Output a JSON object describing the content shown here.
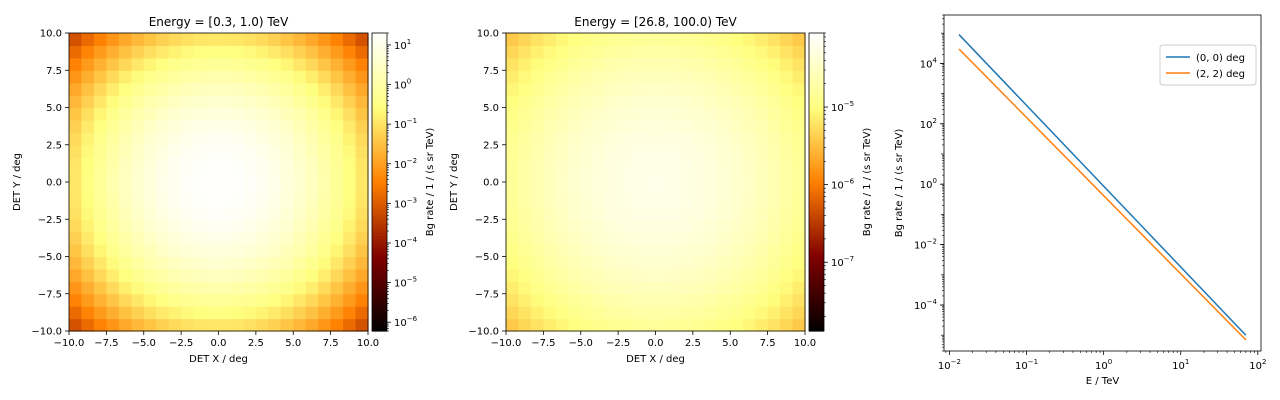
{
  "chart_data": [
    {
      "type": "heatmap",
      "title": "Energy = [0.3, 1.0) TeV",
      "xlabel": "DET X / deg",
      "ylabel": "DET Y / deg",
      "xlim": [
        -10,
        10
      ],
      "ylim": [
        -10,
        10
      ],
      "grid": false,
      "x_ticks": [
        -10.0,
        -7.5,
        -5.0,
        -2.5,
        0.0,
        2.5,
        5.0,
        7.5,
        10.0
      ],
      "x_tick_labels": [
        "−10.0",
        "−7.5",
        "−5.0",
        "−2.5",
        "0.0",
        "2.5",
        "5.0",
        "7.5",
        "10.0"
      ],
      "y_ticks": [
        -10.0,
        -7.5,
        -5.0,
        -2.5,
        0.0,
        2.5,
        5.0,
        7.5,
        10.0
      ],
      "y_tick_labels": [
        "−10.0",
        "−7.5",
        "−5.0",
        "−2.5",
        "0.0",
        "2.5",
        "5.0",
        "7.5",
        "10.0"
      ],
      "bins": 24,
      "model": "gaussian",
      "peak_value": 20,
      "sigma_deg": 3.0,
      "colormap": "afmhot",
      "colorbar": {
        "label": "Bg rate / 1 / (s sr TeV)",
        "scale": "log",
        "range": [
          6e-07,
          20
        ],
        "major_ticks": [
          1e-06,
          1e-05,
          0.0001,
          0.001,
          0.01,
          0.1,
          1,
          10
        ],
        "tick_labels": [
          {
            "base": "10",
            "exp": "−6"
          },
          {
            "base": "10",
            "exp": "−5"
          },
          {
            "base": "10",
            "exp": "−4"
          },
          {
            "base": "10",
            "exp": "−3"
          },
          {
            "base": "10",
            "exp": "−2"
          },
          {
            "base": "10",
            "exp": "−1"
          },
          {
            "base": "10",
            "exp": "0"
          },
          {
            "base": "10",
            "exp": "1"
          }
        ]
      }
    },
    {
      "type": "heatmap",
      "title": "Energy = [26.8, 100.0) TeV",
      "xlabel": "DET X / deg",
      "ylabel": "DET Y / deg",
      "xlim": [
        -10,
        10
      ],
      "ylim": [
        -10,
        10
      ],
      "grid": false,
      "x_ticks": [
        -10.0,
        -7.5,
        -5.0,
        -2.5,
        0.0,
        2.5,
        5.0,
        7.5,
        10.0
      ],
      "x_tick_labels": [
        "−10.0",
        "−7.5",
        "−5.0",
        "−2.5",
        "0.0",
        "2.5",
        "5.0",
        "7.5",
        "10.0"
      ],
      "y_ticks": [
        -10.0,
        -7.5,
        -5.0,
        -2.5,
        0.0,
        2.5,
        5.0,
        7.5,
        10.0
      ],
      "y_tick_labels": [
        "−10.0",
        "−7.5",
        "−5.0",
        "−2.5",
        "0.0",
        "2.5",
        "5.0",
        "7.5",
        "10.0"
      ],
      "bins": 24,
      "model": "gaussian",
      "peak_value": 6e-05,
      "sigma_deg": 5.8,
      "colormap": "afmhot",
      "colorbar": {
        "label": "Bg rate / 1 / (s sr TeV)",
        "scale": "log",
        "range": [
          1.3e-08,
          9e-05
        ],
        "major_ticks": [
          1e-07,
          1e-06,
          1e-05
        ],
        "tick_labels": [
          {
            "base": "10",
            "exp": "−7"
          },
          {
            "base": "10",
            "exp": "−6"
          },
          {
            "base": "10",
            "exp": "−5"
          }
        ]
      }
    },
    {
      "type": "line",
      "title": "",
      "xlabel": "E / TeV",
      "ylabel": "Bg rate / 1 / (s sr TeV)",
      "x_scale": "log",
      "y_scale": "log",
      "xlim": [
        0.0085,
        110
      ],
      "ylim": [
        3e-06,
        400000.0
      ],
      "grid": false,
      "legend_position": "top-right",
      "x_ticks": [
        0.01,
        0.1,
        1,
        10,
        100
      ],
      "x_tick_labels": [
        {
          "base": "10",
          "exp": "−2"
        },
        {
          "base": "10",
          "exp": "−1"
        },
        {
          "base": "10",
          "exp": "0"
        },
        {
          "base": "10",
          "exp": "1"
        },
        {
          "base": "10",
          "exp": "2"
        }
      ],
      "y_ticks": [
        0.0001,
        0.01,
        1,
        100,
        10000
      ],
      "y_tick_labels": [
        {
          "base": "10",
          "exp": "−4"
        },
        {
          "base": "10",
          "exp": "−2"
        },
        {
          "base": "10",
          "exp": "0"
        },
        {
          "base": "10",
          "exp": "2"
        },
        {
          "base": "10",
          "exp": "4"
        }
      ],
      "series": [
        {
          "name": "(0, 0) deg",
          "color": "#1f77b4",
          "x": [
            0.0133,
            70
          ],
          "y": [
            90000,
            1e-05
          ]
        },
        {
          "name": "(2, 2) deg",
          "color": "#ff7f0e",
          "x": [
            0.0133,
            70
          ],
          "y": [
            30000,
            7e-06
          ]
        }
      ]
    }
  ]
}
